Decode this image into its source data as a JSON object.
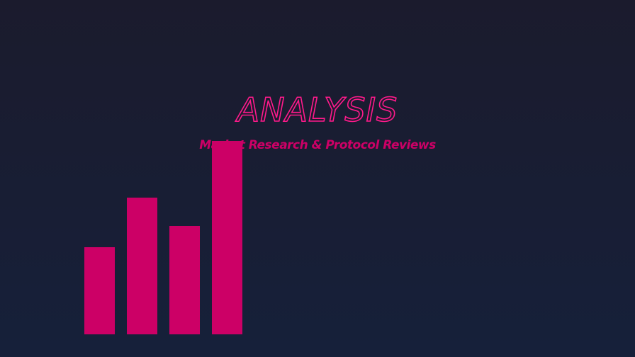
{
  "header": {
    "title": "ANALYSIS",
    "subtitle": "Market Research & Protocol Reviews"
  }
}
